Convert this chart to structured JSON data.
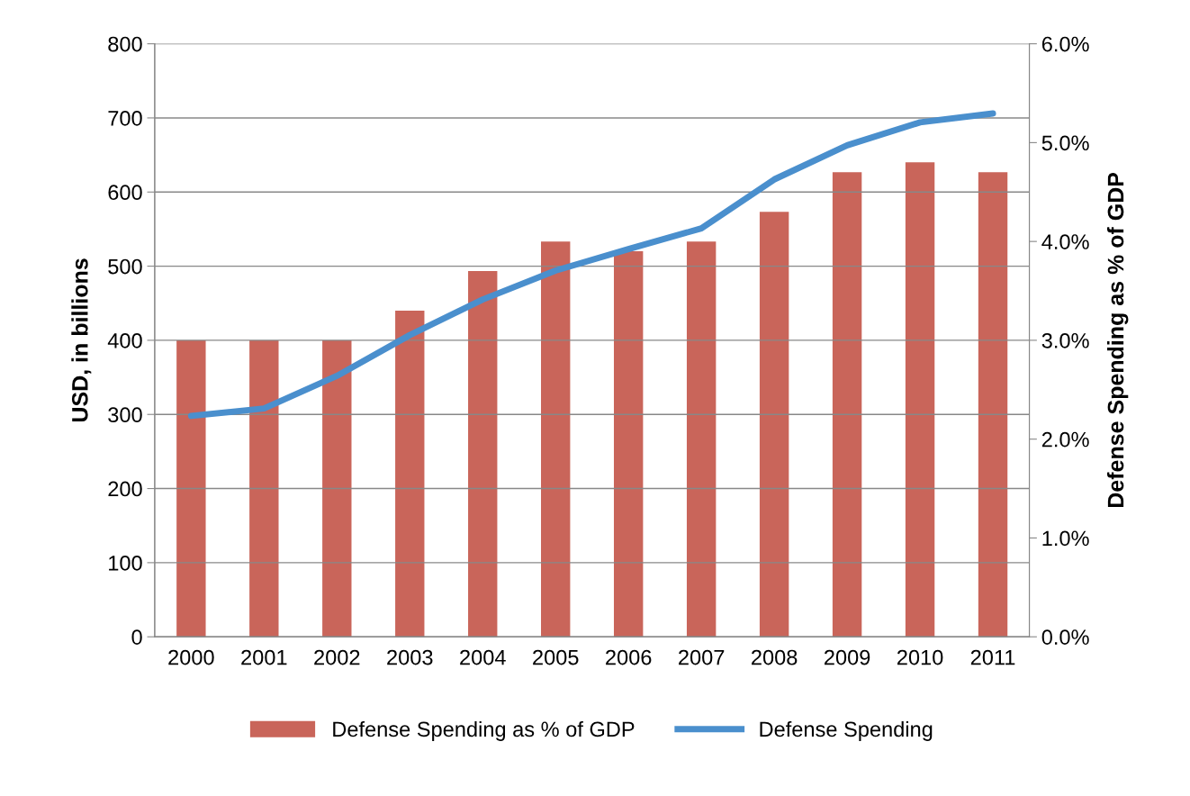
{
  "chart_data": {
    "type": "bar",
    "ylabel": "USD, in billions",
    "y2label": "Defense Spending as % of GDP",
    "categories": [
      "2000",
      "2001",
      "2002",
      "2003",
      "2004",
      "2005",
      "2006",
      "2007",
      "2008",
      "2009",
      "2010",
      "2011"
    ],
    "series": [
      {
        "name": "Defense Spending as % of GDP",
        "axis": "y2",
        "color": "#c9655a",
        "values": [
          3.0,
          3.0,
          3.0,
          3.3,
          3.7,
          4.0,
          3.9,
          4.0,
          4.3,
          4.7,
          4.8,
          4.7
        ]
      },
      {
        "name": "Defense Spending",
        "type": "line",
        "axis": "y",
        "color": "#4a8fcd",
        "values": [
          298,
          308,
          352,
          407,
          455,
          494,
          523,
          551,
          617,
          663,
          694,
          706
        ]
      }
    ],
    "ylim": [
      0,
      800
    ],
    "yticks": [
      0,
      100,
      200,
      300,
      400,
      500,
      600,
      700,
      800
    ],
    "y2lim": [
      0,
      6
    ],
    "y2ticks": [
      {
        "value": 0,
        "label": "0.0%"
      },
      {
        "value": 1,
        "label": "1.0%"
      },
      {
        "value": 2,
        "label": "2.0%"
      },
      {
        "value": 3,
        "label": "3.0%"
      },
      {
        "value": 4,
        "label": "4.0%"
      },
      {
        "value": 5,
        "label": "5.0%"
      },
      {
        "value": 6,
        "label": "6.0%"
      }
    ],
    "grid": "y",
    "legend": "bottom",
    "marker": "none",
    "line_style": "solid"
  }
}
